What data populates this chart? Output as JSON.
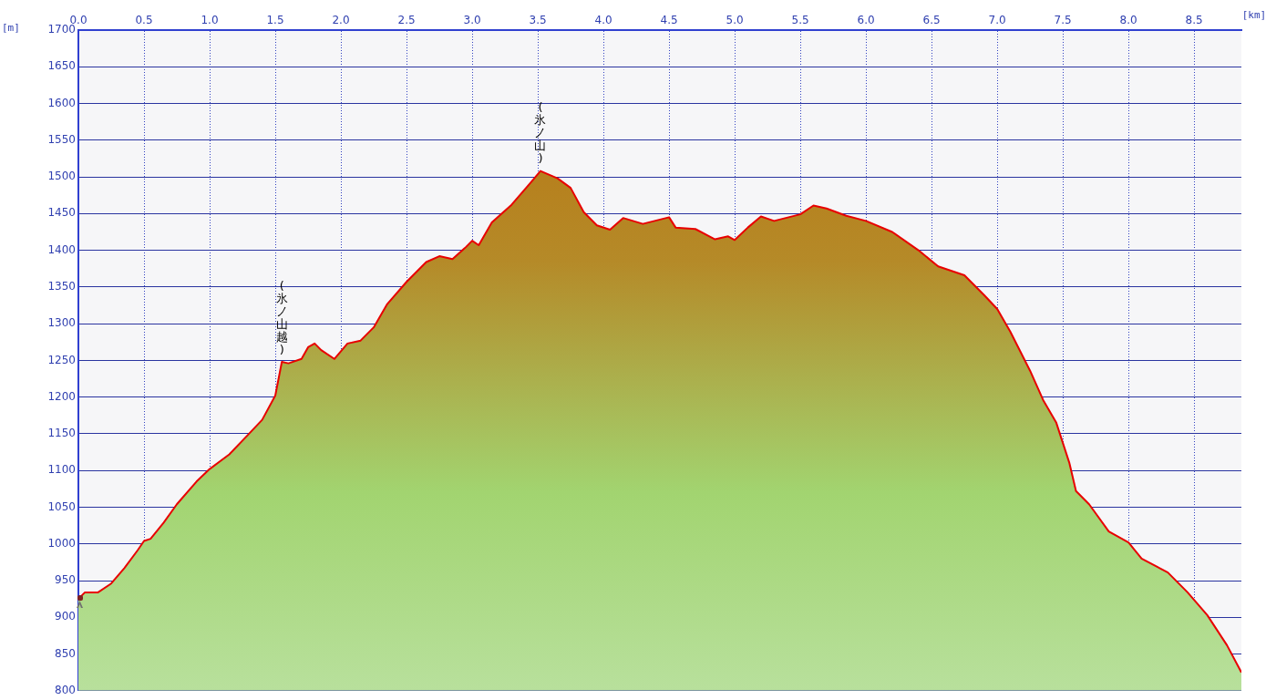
{
  "chart_data": {
    "type": "area",
    "xlabel": "[km]",
    "ylabel": "[m]",
    "x": [
      0,
      0.05,
      0.15,
      0.25,
      0.35,
      0.45,
      0.5,
      0.55,
      0.65,
      0.75,
      0.9,
      1.0,
      1.15,
      1.3,
      1.4,
      1.5,
      1.55,
      1.6,
      1.7,
      1.75,
      1.8,
      1.85,
      1.95,
      2.05,
      2.15,
      2.25,
      2.35,
      2.5,
      2.65,
      2.75,
      2.85,
      2.95,
      3.0,
      3.05,
      3.15,
      3.3,
      3.45,
      3.52,
      3.65,
      3.75,
      3.85,
      3.95,
      4.05,
      4.15,
      4.3,
      4.5,
      4.55,
      4.7,
      4.85,
      4.95,
      5.0,
      5.1,
      5.2,
      5.3,
      5.5,
      5.6,
      5.7,
      5.85,
      6.0,
      6.2,
      6.4,
      6.55,
      6.75,
      6.9,
      7.0,
      7.1,
      7.25,
      7.35,
      7.45,
      7.55,
      7.6,
      7.7,
      7.85,
      8.0,
      8.1,
      8.3,
      8.45,
      8.6,
      8.75,
      8.86
    ],
    "series": [
      {
        "color": "#e80000",
        "values": [
          925,
          934,
          934,
          946,
          967,
          991,
          1004,
          1007,
          1029,
          1054,
          1085,
          1102,
          1122,
          1150,
          1169,
          1202,
          1248,
          1246,
          1252,
          1268,
          1273,
          1264,
          1252,
          1273,
          1277,
          1295,
          1326,
          1357,
          1384,
          1392,
          1388,
          1404,
          1413,
          1407,
          1438,
          1462,
          1493,
          1508,
          1498,
          1485,
          1452,
          1434,
          1428,
          1444,
          1436,
          1445,
          1431,
          1429,
          1415,
          1419,
          1414,
          1431,
          1446,
          1440,
          1449,
          1461,
          1457,
          1447,
          1440,
          1425,
          1400,
          1378,
          1366,
          1339,
          1320,
          1289,
          1236,
          1196,
          1165,
          1110,
          1072,
          1054,
          1017,
          1002,
          980,
          961,
          934,
          903,
          862,
          825
        ]
      }
    ],
    "xlim": [
      0,
      8.86
    ],
    "xticks": [
      {
        "value": 0,
        "label": "0.0"
      },
      {
        "value": 0.5,
        "label": "0.5"
      },
      {
        "value": 1,
        "label": "1.0"
      },
      {
        "value": 1.5,
        "label": "1.5"
      },
      {
        "value": 2,
        "label": "2.0"
      },
      {
        "value": 2.5,
        "label": "2.5"
      },
      {
        "value": 3,
        "label": "3.0"
      },
      {
        "value": 3.5,
        "label": "3.5"
      },
      {
        "value": 4,
        "label": "4.0"
      },
      {
        "value": 4.5,
        "label": "4.5"
      },
      {
        "value": 5,
        "label": "5.0"
      },
      {
        "value": 5.5,
        "label": "5.5"
      },
      {
        "value": 6,
        "label": "6.0"
      },
      {
        "value": 6.5,
        "label": "6.5"
      },
      {
        "value": 7,
        "label": "7.0"
      },
      {
        "value": 7.5,
        "label": "7.5"
      },
      {
        "value": 8,
        "label": "8.0"
      },
      {
        "value": 8.5,
        "label": "8.5"
      }
    ],
    "ylim": [
      800,
      1700
    ],
    "yticks": [
      800,
      850,
      900,
      950,
      1000,
      1050,
      1100,
      1150,
      1200,
      1250,
      1300,
      1350,
      1400,
      1450,
      1500,
      1550,
      1600,
      1650,
      1700
    ],
    "grid": true,
    "annotations": [
      {
        "text": "(氷ノ山越)",
        "x": 1.55,
        "y": 1248
      },
      {
        "text": "(氷ノ山)",
        "x": 3.52,
        "y": 1508
      }
    ]
  }
}
